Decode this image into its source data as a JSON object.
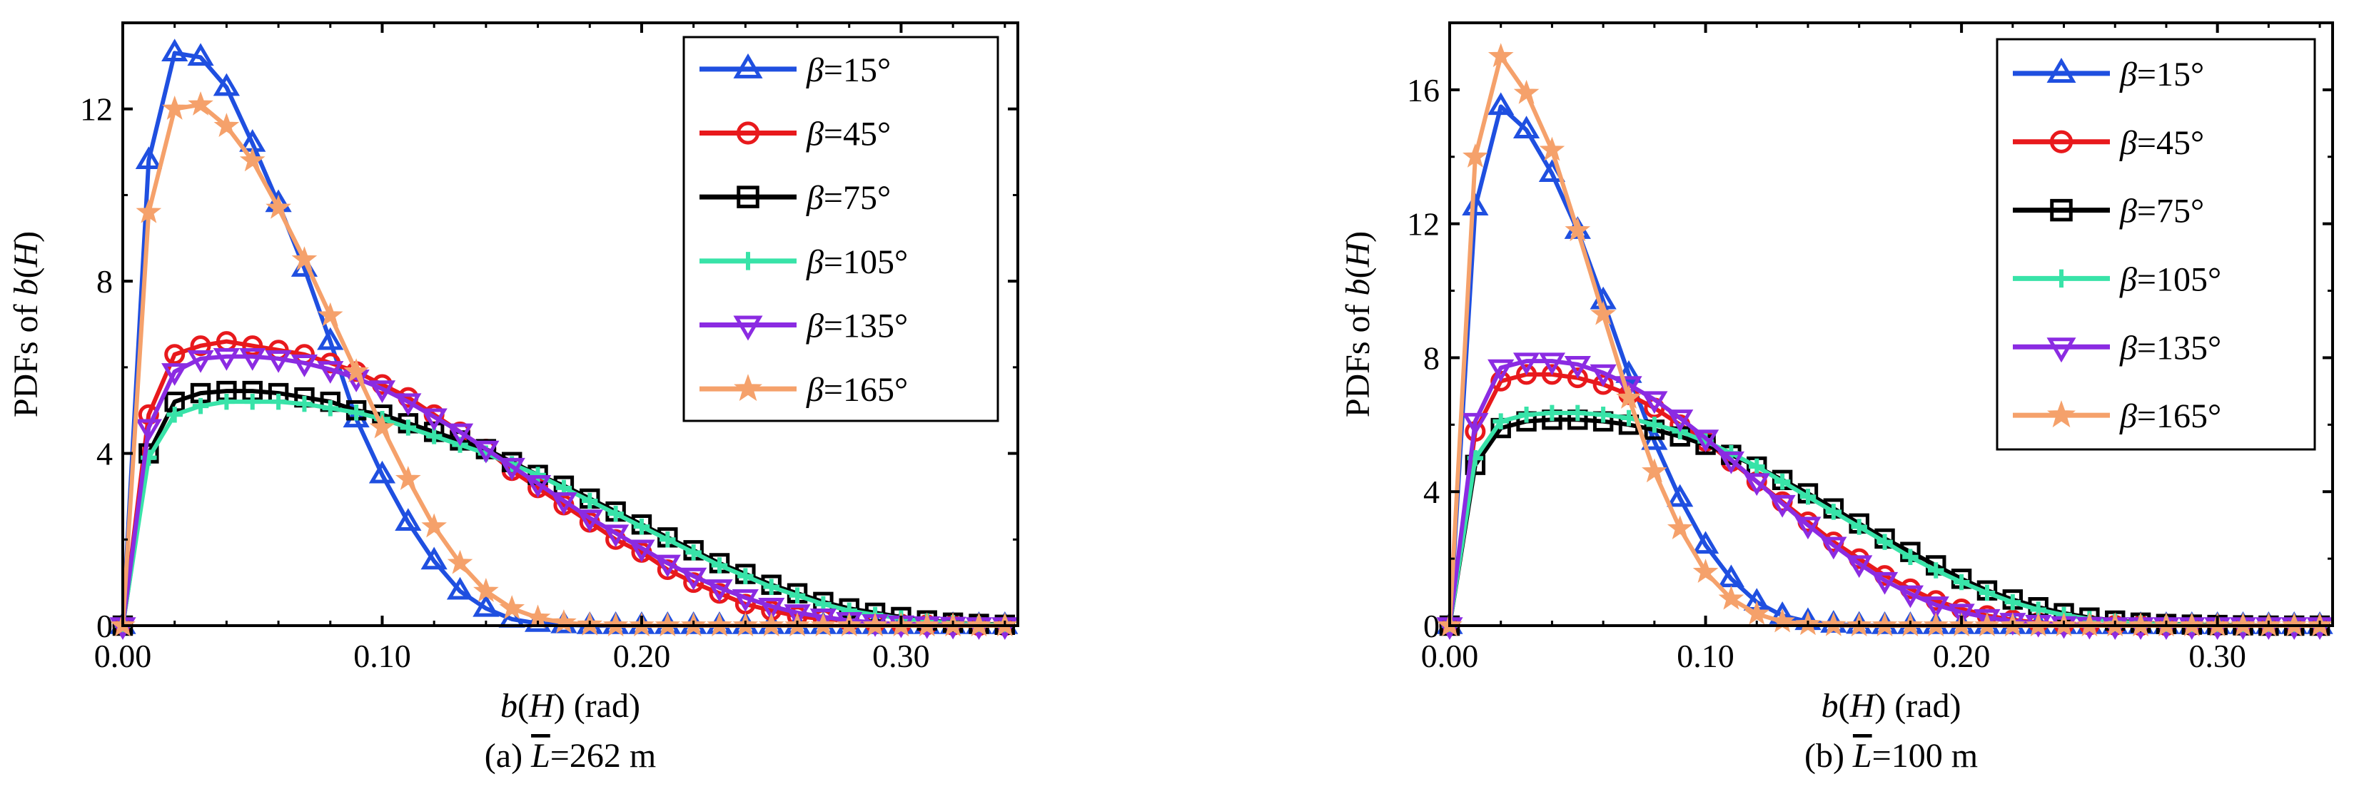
{
  "chart_data": [
    {
      "type": "line",
      "caption": {
        "prefix": "(a) ",
        "symbol": "L",
        "suffix": "=262 m"
      },
      "ylabel": {
        "text": "PDFs of ",
        "italic": "b",
        "paren_open": "(",
        "italic2": "H",
        "paren_close": ")"
      },
      "xlabel": {
        "italic": "b",
        "paren_open": "(",
        "italic2": "H",
        "suffix": ") (rad)"
      },
      "xlim": [
        0,
        0.345
      ],
      "ylim": [
        0,
        14
      ],
      "xticks": [
        0.0,
        0.1,
        0.2,
        0.3
      ],
      "xtick_labels": [
        "0.00",
        "0.10",
        "0.20",
        "0.30"
      ],
      "yticks": [
        0,
        4,
        8,
        12
      ],
      "ytick_labels": [
        "0",
        "4",
        "8",
        "12"
      ],
      "legend_position": "top-right",
      "grid": false,
      "series": [
        {
          "name": "β=15°",
          "beta": "15°",
          "color": "#1f4fe0",
          "marker": "triangle-up",
          "x": [
            0.0,
            0.01,
            0.02,
            0.03,
            0.04,
            0.05,
            0.06,
            0.07,
            0.08,
            0.09,
            0.1,
            0.11,
            0.12,
            0.13,
            0.14,
            0.15,
            0.16,
            0.17,
            0.18,
            0.19,
            0.2,
            0.21,
            0.22,
            0.23,
            0.24,
            0.25,
            0.26,
            0.27,
            0.28,
            0.29,
            0.3,
            0.31,
            0.32,
            0.33,
            0.34
          ],
          "y": [
            0,
            10.8,
            13.3,
            13.2,
            12.5,
            11.2,
            9.8,
            8.3,
            6.6,
            4.8,
            3.5,
            2.4,
            1.5,
            0.8,
            0.4,
            0.15,
            0.05,
            0.02,
            0,
            0,
            0,
            0,
            0,
            0,
            0,
            0,
            0,
            0,
            0,
            0,
            0,
            0,
            0,
            0,
            0
          ]
        },
        {
          "name": "β=45°",
          "beta": "45°",
          "color": "#e8191c",
          "marker": "circle",
          "x": [
            0.0,
            0.01,
            0.02,
            0.03,
            0.04,
            0.05,
            0.06,
            0.07,
            0.08,
            0.09,
            0.1,
            0.11,
            0.12,
            0.13,
            0.14,
            0.15,
            0.16,
            0.17,
            0.18,
            0.19,
            0.2,
            0.21,
            0.22,
            0.23,
            0.24,
            0.25,
            0.26,
            0.27,
            0.28,
            0.29,
            0.3,
            0.31,
            0.32,
            0.33,
            0.34
          ],
          "y": [
            0,
            4.9,
            6.3,
            6.5,
            6.6,
            6.5,
            6.4,
            6.3,
            6.1,
            5.9,
            5.6,
            5.3,
            4.9,
            4.5,
            4.1,
            3.6,
            3.2,
            2.8,
            2.4,
            2.0,
            1.7,
            1.3,
            1.0,
            0.75,
            0.5,
            0.35,
            0.22,
            0.15,
            0.1,
            0.06,
            0.04,
            0.02,
            0.01,
            0.0,
            0.0
          ]
        },
        {
          "name": "β=75°",
          "beta": "75°",
          "color": "#000000",
          "marker": "square",
          "x": [
            0.0,
            0.01,
            0.02,
            0.03,
            0.04,
            0.05,
            0.06,
            0.07,
            0.08,
            0.09,
            0.1,
            0.11,
            0.12,
            0.13,
            0.14,
            0.15,
            0.16,
            0.17,
            0.18,
            0.19,
            0.2,
            0.21,
            0.22,
            0.23,
            0.24,
            0.25,
            0.26,
            0.27,
            0.28,
            0.29,
            0.3,
            0.31,
            0.32,
            0.33,
            0.34
          ],
          "y": [
            0,
            4.0,
            5.2,
            5.4,
            5.45,
            5.45,
            5.4,
            5.3,
            5.2,
            5.0,
            4.9,
            4.7,
            4.5,
            4.3,
            4.1,
            3.8,
            3.5,
            3.25,
            2.95,
            2.65,
            2.35,
            2.05,
            1.75,
            1.45,
            1.2,
            0.95,
            0.75,
            0.55,
            0.4,
            0.3,
            0.2,
            0.12,
            0.07,
            0.04,
            0.02
          ]
        },
        {
          "name": "β=105°",
          "beta": "105°",
          "color": "#38e3a8",
          "marker": "plus",
          "x": [
            0.0,
            0.01,
            0.02,
            0.03,
            0.04,
            0.05,
            0.06,
            0.07,
            0.08,
            0.09,
            0.1,
            0.11,
            0.12,
            0.13,
            0.14,
            0.15,
            0.16,
            0.17,
            0.18,
            0.19,
            0.2,
            0.21,
            0.22,
            0.23,
            0.24,
            0.25,
            0.26,
            0.27,
            0.28,
            0.29,
            0.3,
            0.31,
            0.32,
            0.33,
            0.34
          ],
          "y": [
            0,
            3.9,
            4.9,
            5.1,
            5.2,
            5.2,
            5.2,
            5.15,
            5.05,
            4.95,
            4.8,
            4.6,
            4.4,
            4.2,
            4.0,
            3.75,
            3.5,
            3.2,
            2.9,
            2.6,
            2.3,
            2.0,
            1.7,
            1.4,
            1.15,
            0.9,
            0.7,
            0.5,
            0.35,
            0.25,
            0.17,
            0.1,
            0.06,
            0.03,
            0.01
          ]
        },
        {
          "name": "β=135°",
          "beta": "135°",
          "color": "#8b2be2",
          "marker": "triangle-down",
          "x": [
            0.0,
            0.01,
            0.02,
            0.03,
            0.04,
            0.05,
            0.06,
            0.07,
            0.08,
            0.09,
            0.1,
            0.11,
            0.12,
            0.13,
            0.14,
            0.15,
            0.16,
            0.17,
            0.18,
            0.19,
            0.2,
            0.21,
            0.22,
            0.23,
            0.24,
            0.25,
            0.26,
            0.27,
            0.28,
            0.29,
            0.3,
            0.31,
            0.32,
            0.33,
            0.34
          ],
          "y": [
            0,
            4.6,
            5.9,
            6.2,
            6.25,
            6.25,
            6.2,
            6.1,
            5.95,
            5.75,
            5.5,
            5.2,
            4.85,
            4.5,
            4.1,
            3.7,
            3.3,
            2.9,
            2.5,
            2.15,
            1.8,
            1.45,
            1.15,
            0.88,
            0.65,
            0.45,
            0.3,
            0.2,
            0.12,
            0.07,
            0.04,
            0.02,
            0.01,
            0.0,
            0.0
          ]
        },
        {
          "name": "β=165°",
          "beta": "165°",
          "color": "#f5a16b",
          "marker": "star",
          "x": [
            0.0,
            0.01,
            0.02,
            0.03,
            0.04,
            0.05,
            0.06,
            0.07,
            0.08,
            0.09,
            0.1,
            0.11,
            0.12,
            0.13,
            0.14,
            0.15,
            0.16,
            0.17,
            0.18,
            0.19,
            0.2,
            0.21,
            0.22,
            0.23,
            0.24,
            0.25,
            0.26,
            0.27,
            0.28,
            0.29,
            0.3,
            0.31,
            0.32,
            0.33,
            0.34
          ],
          "y": [
            0,
            9.6,
            12.0,
            12.1,
            11.6,
            10.8,
            9.7,
            8.5,
            7.2,
            5.9,
            4.6,
            3.4,
            2.3,
            1.45,
            0.8,
            0.4,
            0.18,
            0.07,
            0.02,
            0,
            0,
            0,
            0,
            0,
            0,
            0,
            0,
            0,
            0,
            0,
            0,
            0,
            0,
            0,
            0
          ]
        }
      ]
    },
    {
      "type": "line",
      "caption": {
        "prefix": "(b) ",
        "symbol": "L",
        "suffix": "=100 m"
      },
      "ylabel": {
        "text": "PDFs of ",
        "italic": "b",
        "paren_open": "(",
        "italic2": "H",
        "paren_close": ")"
      },
      "xlabel": {
        "italic": "b",
        "paren_open": "(",
        "italic2": "H",
        "suffix": ") (rad)"
      },
      "xlim": [
        0,
        0.345
      ],
      "ylim": [
        0,
        18
      ],
      "xticks": [
        0.0,
        0.1,
        0.2,
        0.3
      ],
      "xtick_labels": [
        "0.00",
        "0.10",
        "0.20",
        "0.30"
      ],
      "yticks": [
        0,
        4,
        8,
        12,
        16
      ],
      "ytick_labels": [
        "0",
        "4",
        "8",
        "12",
        "16"
      ],
      "legend_position": "top-right",
      "grid": false,
      "series": [
        {
          "name": "β=15°",
          "beta": "15°",
          "color": "#1f4fe0",
          "marker": "triangle-up",
          "x": [
            0.0,
            0.01,
            0.02,
            0.03,
            0.04,
            0.05,
            0.06,
            0.07,
            0.08,
            0.09,
            0.1,
            0.11,
            0.12,
            0.13,
            0.14,
            0.15,
            0.16,
            0.17,
            0.18,
            0.19,
            0.2,
            0.21,
            0.22,
            0.23,
            0.24,
            0.25,
            0.26,
            0.27,
            0.28,
            0.29,
            0.3,
            0.31,
            0.32,
            0.33,
            0.34
          ],
          "y": [
            0,
            12.5,
            15.5,
            14.8,
            13.5,
            11.8,
            9.7,
            7.5,
            5.5,
            3.8,
            2.4,
            1.4,
            0.7,
            0.3,
            0.12,
            0.04,
            0.01,
            0,
            0,
            0,
            0,
            0,
            0,
            0,
            0,
            0,
            0,
            0,
            0,
            0,
            0,
            0,
            0,
            0,
            0
          ]
        },
        {
          "name": "β=45°",
          "beta": "45°",
          "color": "#e8191c",
          "marker": "circle",
          "x": [
            0.0,
            0.01,
            0.02,
            0.03,
            0.04,
            0.05,
            0.06,
            0.07,
            0.08,
            0.09,
            0.1,
            0.11,
            0.12,
            0.13,
            0.14,
            0.15,
            0.16,
            0.17,
            0.18,
            0.19,
            0.2,
            0.21,
            0.22,
            0.23,
            0.24,
            0.25,
            0.26,
            0.27,
            0.28,
            0.29,
            0.3,
            0.31,
            0.32,
            0.33,
            0.34
          ],
          "y": [
            0,
            5.8,
            7.3,
            7.5,
            7.5,
            7.4,
            7.2,
            6.9,
            6.5,
            6.0,
            5.5,
            4.9,
            4.3,
            3.7,
            3.1,
            2.5,
            2.0,
            1.5,
            1.1,
            0.75,
            0.5,
            0.3,
            0.17,
            0.09,
            0.04,
            0.02,
            0.01,
            0,
            0,
            0,
            0,
            0,
            0,
            0,
            0
          ]
        },
        {
          "name": "β=75°",
          "beta": "75°",
          "color": "#000000",
          "marker": "square",
          "x": [
            0.0,
            0.01,
            0.02,
            0.03,
            0.04,
            0.05,
            0.06,
            0.07,
            0.08,
            0.09,
            0.1,
            0.11,
            0.12,
            0.13,
            0.14,
            0.15,
            0.16,
            0.17,
            0.18,
            0.19,
            0.2,
            0.21,
            0.22,
            0.23,
            0.24,
            0.25,
            0.26,
            0.27,
            0.28,
            0.29,
            0.3,
            0.31,
            0.32,
            0.33,
            0.34
          ],
          "y": [
            0,
            4.8,
            5.9,
            6.1,
            6.15,
            6.15,
            6.1,
            6.0,
            5.85,
            5.65,
            5.4,
            5.1,
            4.75,
            4.35,
            3.95,
            3.5,
            3.05,
            2.6,
            2.2,
            1.8,
            1.4,
            1.05,
            0.78,
            0.55,
            0.37,
            0.24,
            0.15,
            0.09,
            0.05,
            0.03,
            0.02,
            0.01,
            0,
            0,
            0
          ]
        },
        {
          "name": "β=105°",
          "beta": "105°",
          "color": "#38e3a8",
          "marker": "plus",
          "x": [
            0.0,
            0.01,
            0.02,
            0.03,
            0.04,
            0.05,
            0.06,
            0.07,
            0.08,
            0.09,
            0.1,
            0.11,
            0.12,
            0.13,
            0.14,
            0.15,
            0.16,
            0.17,
            0.18,
            0.19,
            0.2,
            0.21,
            0.22,
            0.23,
            0.24,
            0.25,
            0.26,
            0.27,
            0.28,
            0.29,
            0.3,
            0.31,
            0.32,
            0.33,
            0.34
          ],
          "y": [
            0,
            5.0,
            6.1,
            6.3,
            6.35,
            6.35,
            6.3,
            6.2,
            6.0,
            5.8,
            5.5,
            5.15,
            4.75,
            4.3,
            3.85,
            3.4,
            2.95,
            2.5,
            2.05,
            1.65,
            1.3,
            0.98,
            0.7,
            0.48,
            0.32,
            0.2,
            0.12,
            0.07,
            0.04,
            0.02,
            0.01,
            0,
            0,
            0,
            0
          ]
        },
        {
          "name": "β=135°",
          "beta": "135°",
          "color": "#8b2be2",
          "marker": "triangle-down",
          "x": [
            0.0,
            0.01,
            0.02,
            0.03,
            0.04,
            0.05,
            0.06,
            0.07,
            0.08,
            0.09,
            0.1,
            0.11,
            0.12,
            0.13,
            0.14,
            0.15,
            0.16,
            0.17,
            0.18,
            0.19,
            0.2,
            0.21,
            0.22,
            0.23,
            0.24,
            0.25,
            0.26,
            0.27,
            0.28,
            0.29,
            0.3,
            0.31,
            0.32,
            0.33,
            0.34
          ],
          "y": [
            0,
            6.1,
            7.7,
            7.9,
            7.9,
            7.8,
            7.55,
            7.2,
            6.75,
            6.2,
            5.6,
            4.95,
            4.3,
            3.65,
            3.0,
            2.4,
            1.85,
            1.35,
            0.95,
            0.62,
            0.4,
            0.24,
            0.13,
            0.07,
            0.03,
            0.01,
            0,
            0,
            0,
            0,
            0,
            0,
            0,
            0,
            0
          ]
        },
        {
          "name": "β=165°",
          "beta": "165°",
          "color": "#f5a16b",
          "marker": "star",
          "x": [
            0.0,
            0.01,
            0.02,
            0.03,
            0.04,
            0.05,
            0.06,
            0.07,
            0.08,
            0.09,
            0.1,
            0.11,
            0.12,
            0.13,
            0.14,
            0.15,
            0.16,
            0.17,
            0.18,
            0.19,
            0.2,
            0.21,
            0.22,
            0.23,
            0.24,
            0.25,
            0.26,
            0.27,
            0.28,
            0.29,
            0.3,
            0.31,
            0.32,
            0.33,
            0.34
          ],
          "y": [
            0,
            14.0,
            17.0,
            15.9,
            14.2,
            11.8,
            9.3,
            6.8,
            4.6,
            2.9,
            1.6,
            0.8,
            0.35,
            0.12,
            0.04,
            0.01,
            0,
            0,
            0,
            0,
            0,
            0,
            0,
            0,
            0,
            0,
            0,
            0,
            0,
            0,
            0,
            0,
            0,
            0,
            0
          ]
        }
      ]
    }
  ]
}
